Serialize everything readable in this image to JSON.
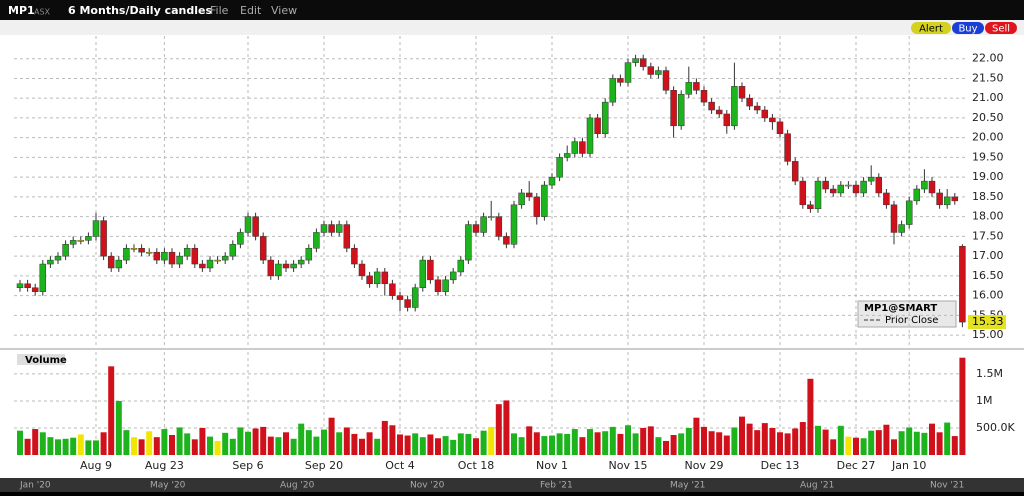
{
  "toolbar": {
    "symbol": "MP1",
    "exchange": "ASX",
    "period": "6 Months/Daily candles",
    "menus": [
      "File",
      "Edit",
      "View"
    ],
    "buttons": [
      "Alert",
      "Buy",
      "Sell"
    ]
  },
  "legend_box": {
    "title": "MP1@SMART",
    "prior_close": "Prior Close"
  },
  "timeline": [
    "Jan '20",
    "May '20",
    "Aug '20",
    "Nov '20",
    "Feb '21",
    "May '21",
    "Aug '21",
    "Nov '21"
  ],
  "chart_data": [
    {
      "type": "candlestick",
      "up_color": "#1db31d",
      "down_color": "#d0111b",
      "flat_color": "#f2e600",
      "categories": [
        null,
        null,
        null,
        null,
        null,
        null,
        null,
        null,
        null,
        null,
        "Aug 9",
        null,
        null,
        null,
        null,
        null,
        null,
        null,
        null,
        "Aug 23",
        null,
        null,
        null,
        null,
        null,
        null,
        null,
        null,
        null,
        null,
        "Sep 6",
        null,
        null,
        null,
        null,
        null,
        null,
        null,
        null,
        null,
        "Sep 20",
        null,
        null,
        null,
        null,
        null,
        null,
        null,
        null,
        null,
        "Oct 4",
        null,
        null,
        null,
        null,
        null,
        null,
        null,
        null,
        null,
        "Oct 18",
        null,
        null,
        null,
        null,
        null,
        null,
        null,
        null,
        null,
        "Nov 1",
        null,
        null,
        null,
        null,
        null,
        null,
        null,
        null,
        null,
        "Nov 15",
        null,
        null,
        null,
        null,
        null,
        null,
        null,
        null,
        null,
        "Nov 29",
        null,
        null,
        null,
        null,
        null,
        null,
        null,
        null,
        null,
        "Dec 13",
        null,
        null,
        null,
        null,
        null,
        null,
        null,
        null,
        null,
        "Dec 27",
        null,
        null,
        null,
        null,
        null,
        null,
        "Jan 10",
        null,
        null,
        null,
        null,
        null,
        null,
        null
      ],
      "open": [
        16.2,
        16.3,
        16.2,
        16.1,
        16.8,
        16.9,
        17.0,
        17.3,
        17.4,
        17.4,
        17.5,
        17.9,
        17.0,
        16.7,
        16.9,
        17.2,
        17.2,
        17.1,
        17.1,
        16.9,
        17.1,
        16.8,
        17.0,
        17.2,
        16.8,
        16.7,
        16.9,
        16.9,
        17.0,
        17.3,
        17.6,
        18.0,
        17.5,
        16.9,
        16.5,
        16.8,
        16.7,
        16.8,
        16.9,
        17.2,
        17.6,
        17.8,
        17.6,
        17.8,
        17.2,
        16.8,
        16.5,
        16.3,
        16.6,
        16.3,
        16.0,
        15.9,
        15.7,
        16.2,
        16.9,
        16.4,
        16.1,
        16.4,
        16.6,
        16.9,
        17.8,
        17.6,
        18.0,
        18.0,
        17.5,
        17.3,
        18.3,
        18.6,
        18.5,
        18.0,
        18.8,
        19.0,
        19.5,
        19.6,
        19.9,
        19.6,
        20.5,
        20.1,
        20.9,
        21.5,
        21.4,
        21.9,
        22.0,
        21.8,
        21.6,
        21.7,
        21.2,
        20.3,
        21.1,
        21.4,
        21.2,
        20.9,
        20.7,
        20.6,
        20.3,
        21.3,
        21.0,
        20.8,
        20.7,
        20.5,
        20.4,
        20.1,
        19.4,
        18.9,
        18.3,
        18.2,
        18.9,
        18.7,
        18.6,
        18.8,
        18.8,
        18.6,
        18.9,
        19.0,
        18.6,
        18.3,
        17.6,
        17.8,
        18.4,
        18.7,
        18.9,
        18.6,
        18.3,
        18.5,
        17.25
      ],
      "high": [
        16.4,
        16.4,
        16.3,
        16.9,
        17.0,
        17.1,
        17.4,
        17.5,
        17.5,
        17.6,
        18.1,
        18.0,
        17.1,
        17.0,
        17.3,
        17.3,
        17.3,
        17.2,
        17.2,
        17.2,
        17.2,
        17.1,
        17.3,
        17.3,
        16.9,
        17.0,
        17.0,
        17.1,
        17.4,
        17.7,
        18.1,
        18.1,
        17.6,
        17.0,
        16.9,
        16.9,
        16.9,
        17.0,
        17.3,
        17.7,
        17.9,
        17.9,
        17.9,
        17.9,
        17.3,
        16.9,
        16.6,
        16.7,
        16.7,
        16.4,
        16.1,
        16.0,
        16.3,
        17.0,
        17.0,
        16.5,
        16.5,
        16.7,
        17.0,
        17.9,
        17.9,
        18.1,
        18.4,
        18.1,
        17.6,
        18.4,
        18.7,
        18.9,
        18.6,
        18.9,
        19.1,
        19.6,
        19.8,
        20.0,
        20.0,
        20.6,
        20.6,
        21.0,
        21.6,
        21.6,
        22.0,
        22.1,
        22.1,
        21.9,
        21.8,
        21.8,
        21.3,
        21.2,
        21.8,
        21.5,
        21.3,
        21.0,
        20.8,
        20.7,
        21.9,
        21.4,
        21.1,
        20.9,
        20.8,
        20.6,
        20.5,
        20.2,
        19.5,
        19.0,
        18.4,
        19.0,
        19.0,
        18.8,
        18.9,
        18.9,
        18.9,
        19.0,
        19.3,
        19.1,
        18.7,
        18.4,
        17.9,
        18.5,
        18.8,
        19.2,
        19.0,
        18.7,
        18.7,
        18.6,
        17.3
      ],
      "low": [
        16.1,
        16.1,
        16.0,
        16.0,
        16.7,
        16.8,
        16.9,
        17.2,
        17.3,
        17.3,
        17.4,
        16.9,
        16.6,
        16.6,
        16.8,
        17.1,
        17.0,
        17.0,
        16.8,
        16.8,
        16.7,
        16.7,
        16.9,
        16.7,
        16.6,
        16.6,
        16.8,
        16.8,
        16.9,
        17.2,
        17.5,
        17.4,
        16.8,
        16.4,
        16.4,
        16.6,
        16.6,
        16.7,
        16.8,
        17.1,
        17.5,
        17.5,
        17.5,
        17.1,
        16.7,
        16.4,
        16.2,
        16.2,
        16.0,
        15.9,
        15.6,
        15.6,
        15.6,
        16.1,
        16.3,
        16.0,
        16.0,
        16.3,
        16.5,
        16.8,
        17.5,
        17.5,
        17.9,
        17.4,
        17.2,
        17.2,
        18.2,
        18.4,
        17.8,
        17.9,
        18.7,
        18.9,
        19.4,
        19.5,
        19.5,
        19.5,
        20.0,
        20.0,
        20.8,
        21.3,
        21.3,
        21.8,
        21.7,
        21.5,
        21.5,
        21.1,
        20.0,
        20.2,
        21.0,
        21.1,
        20.8,
        20.6,
        20.5,
        20.1,
        20.2,
        20.9,
        20.7,
        20.6,
        20.4,
        20.2,
        20.0,
        19.3,
        18.8,
        18.2,
        18.1,
        18.1,
        18.6,
        18.5,
        18.5,
        18.7,
        18.5,
        18.5,
        18.8,
        18.5,
        18.2,
        17.3,
        17.5,
        17.7,
        18.3,
        18.6,
        18.5,
        18.2,
        18.2,
        18.3,
        15.2
      ],
      "close": [
        16.3,
        16.2,
        16.1,
        16.8,
        16.9,
        17.0,
        17.3,
        17.4,
        17.4,
        17.5,
        17.9,
        17.0,
        16.7,
        16.9,
        17.2,
        17.2,
        17.1,
        17.1,
        16.9,
        17.1,
        16.8,
        17.0,
        17.2,
        16.8,
        16.7,
        16.9,
        16.9,
        17.0,
        17.3,
        17.6,
        18.0,
        17.5,
        16.9,
        16.5,
        16.8,
        16.7,
        16.8,
        16.9,
        17.2,
        17.6,
        17.8,
        17.6,
        17.8,
        17.2,
        16.8,
        16.5,
        16.3,
        16.6,
        16.3,
        16.0,
        15.9,
        15.7,
        16.2,
        16.9,
        16.4,
        16.1,
        16.4,
        16.6,
        16.9,
        17.8,
        17.6,
        18.0,
        18.0,
        17.5,
        17.3,
        18.3,
        18.6,
        18.5,
        18.0,
        18.8,
        19.0,
        19.5,
        19.6,
        19.9,
        19.6,
        20.5,
        20.1,
        20.9,
        21.5,
        21.4,
        21.9,
        22.0,
        21.8,
        21.6,
        21.7,
        21.2,
        20.3,
        21.1,
        21.4,
        21.2,
        20.9,
        20.7,
        20.6,
        20.3,
        21.3,
        21.0,
        20.8,
        20.7,
        20.5,
        20.4,
        20.1,
        19.4,
        18.9,
        18.3,
        18.2,
        18.9,
        18.7,
        18.6,
        18.8,
        18.8,
        18.6,
        18.9,
        19.0,
        18.6,
        18.3,
        17.6,
        17.8,
        18.4,
        18.7,
        18.9,
        18.6,
        18.3,
        18.5,
        18.4,
        15.33
      ],
      "ylim": [
        14.75,
        22.6
      ],
      "yticks": [
        {
          "value": 15,
          "label": "15.00"
        },
        {
          "value": 15.5,
          "label": "15.50"
        },
        {
          "value": 16,
          "label": "16.00"
        },
        {
          "value": 16.5,
          "label": "16.50"
        },
        {
          "value": 17,
          "label": "17.00"
        },
        {
          "value": 17.5,
          "label": "17.50"
        },
        {
          "value": 18,
          "label": "18.00"
        },
        {
          "value": 18.5,
          "label": "18.50"
        },
        {
          "value": 19,
          "label": "19.00"
        },
        {
          "value": 19.5,
          "label": "19.50"
        },
        {
          "value": 20,
          "label": "20.00"
        },
        {
          "value": 20.5,
          "label": "20.50"
        },
        {
          "value": 21,
          "label": "21.00"
        },
        {
          "value": 21.5,
          "label": "21.50"
        },
        {
          "value": 22,
          "label": "22.00"
        }
      ],
      "grid": true
    },
    {
      "type": "bar",
      "title": "Volume",
      "values": [
        450000,
        300000,
        480000,
        420000,
        330000,
        290000,
        300000,
        320000,
        380000,
        270000,
        270000,
        420000,
        1640000,
        1000000,
        460000,
        330000,
        290000,
        440000,
        330000,
        480000,
        370000,
        510000,
        400000,
        290000,
        500000,
        340000,
        260000,
        410000,
        300000,
        510000,
        430000,
        490000,
        520000,
        340000,
        330000,
        420000,
        300000,
        580000,
        460000,
        340000,
        470000,
        690000,
        420000,
        510000,
        390000,
        300000,
        420000,
        300000,
        630000,
        550000,
        380000,
        360000,
        400000,
        330000,
        380000,
        310000,
        350000,
        280000,
        400000,
        390000,
        310000,
        450000,
        520000,
        940000,
        1010000,
        400000,
        330000,
        530000,
        420000,
        350000,
        360000,
        400000,
        390000,
        480000,
        330000,
        480000,
        420000,
        440000,
        520000,
        390000,
        550000,
        400000,
        500000,
        530000,
        330000,
        260000,
        370000,
        400000,
        500000,
        690000,
        520000,
        440000,
        420000,
        360000,
        510000,
        710000,
        580000,
        460000,
        590000,
        500000,
        420000,
        400000,
        490000,
        610000,
        1410000,
        540000,
        470000,
        290000,
        540000,
        340000,
        320000,
        310000,
        450000,
        460000,
        560000,
        290000,
        440000,
        510000,
        430000,
        410000,
        580000,
        420000,
        600000,
        350000,
        1800000
      ],
      "ylim": [
        0,
        1850000
      ],
      "yticks": [
        {
          "value": 500000,
          "label": "500.0K"
        },
        {
          "value": 1000000,
          "label": "1M"
        },
        {
          "value": 1500000,
          "label": "1.5M"
        }
      ],
      "grid": true
    }
  ]
}
